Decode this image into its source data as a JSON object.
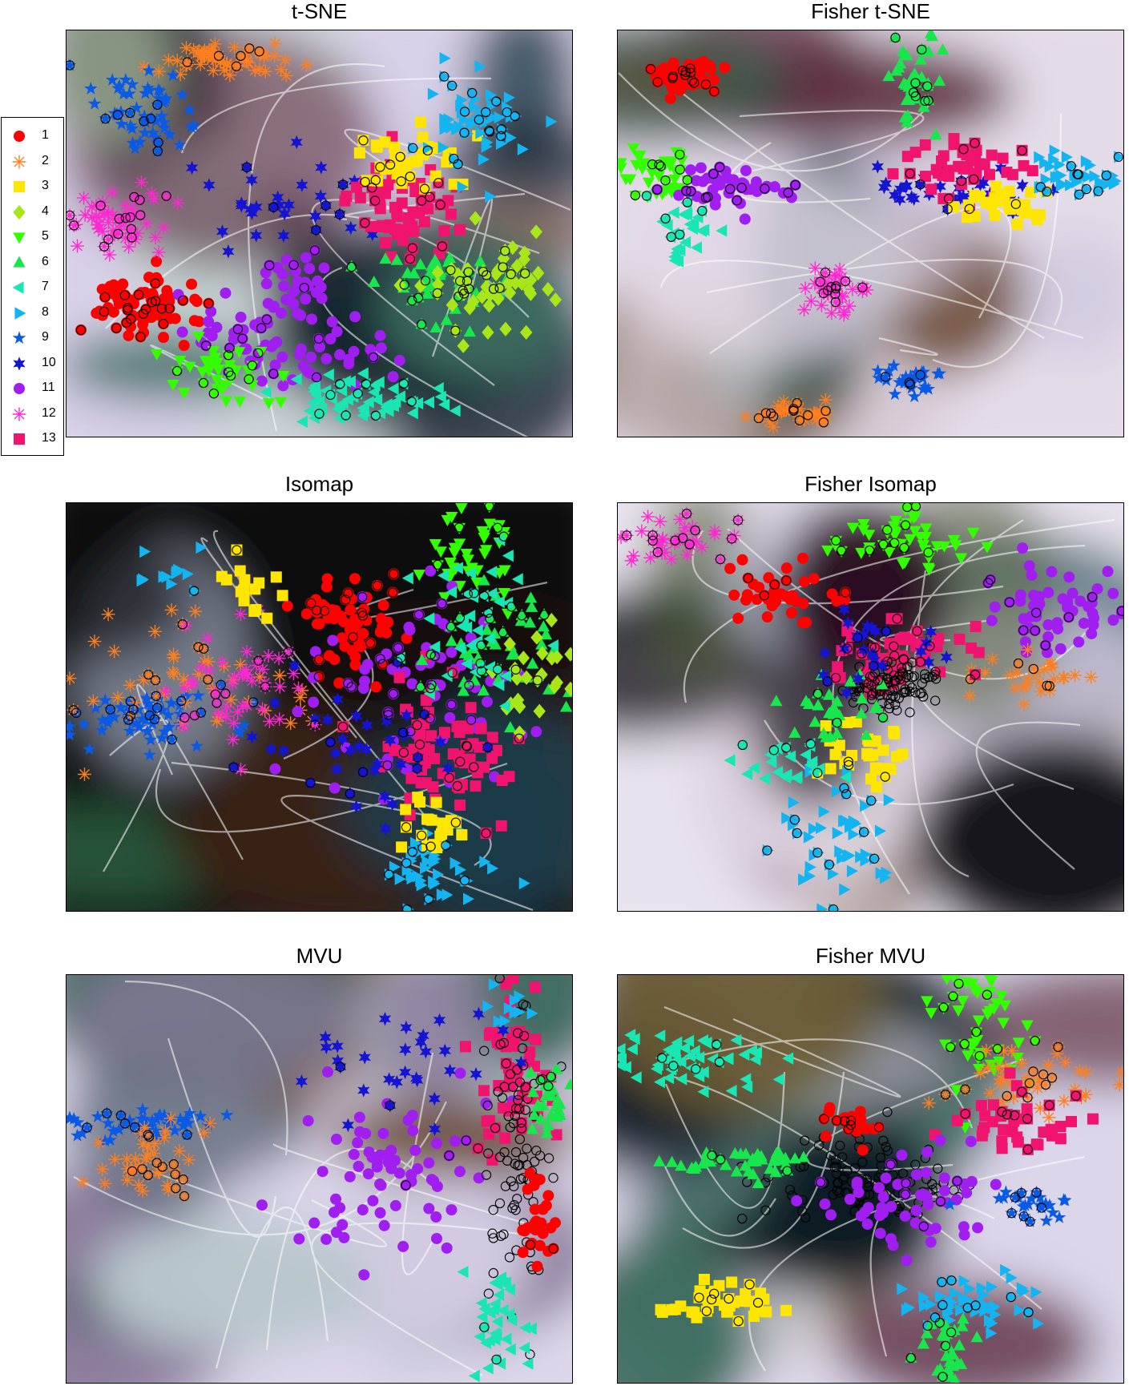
{
  "chart_data": [
    {
      "type": "scatter",
      "title": "t-SNE",
      "background": "decision-regions",
      "legend": "left",
      "clusters": [
        {
          "class": 1,
          "cx": 0.15,
          "cy": 0.67,
          "sx": 0.05,
          "sy": 0.04,
          "n": 90
        },
        {
          "class": 2,
          "cx": 0.32,
          "cy": 0.07,
          "sx": 0.07,
          "sy": 0.02,
          "n": 60
        },
        {
          "class": 12,
          "cx": 0.1,
          "cy": 0.47,
          "sx": 0.05,
          "sy": 0.04,
          "n": 60
        },
        {
          "class": 9,
          "cx": 0.15,
          "cy": 0.19,
          "sx": 0.05,
          "sy": 0.05,
          "n": 55
        },
        {
          "class": 10,
          "cx": 0.44,
          "cy": 0.42,
          "sx": 0.08,
          "sy": 0.05,
          "n": 30
        },
        {
          "class": 11,
          "cx": 0.42,
          "cy": 0.77,
          "sx": 0.1,
          "sy": 0.05,
          "n": 70
        },
        {
          "class": 11,
          "cx": 0.44,
          "cy": 0.62,
          "sx": 0.04,
          "sy": 0.05,
          "n": 30
        },
        {
          "class": 5,
          "cx": 0.3,
          "cy": 0.84,
          "sx": 0.05,
          "sy": 0.04,
          "n": 40
        },
        {
          "class": 7,
          "cx": 0.58,
          "cy": 0.9,
          "sx": 0.08,
          "sy": 0.03,
          "n": 60
        },
        {
          "class": 13,
          "cx": 0.67,
          "cy": 0.43,
          "sx": 0.06,
          "sy": 0.06,
          "n": 70
        },
        {
          "class": 3,
          "cx": 0.67,
          "cy": 0.33,
          "sx": 0.05,
          "sy": 0.04,
          "n": 40
        },
        {
          "class": 8,
          "cx": 0.81,
          "cy": 0.22,
          "sx": 0.05,
          "sy": 0.06,
          "n": 60
        },
        {
          "class": 6,
          "cx": 0.74,
          "cy": 0.63,
          "sx": 0.06,
          "sy": 0.05,
          "n": 45
        },
        {
          "class": 4,
          "cx": 0.84,
          "cy": 0.63,
          "sx": 0.06,
          "sy": 0.05,
          "n": 60
        }
      ]
    },
    {
      "type": "scatter",
      "title": "Fisher t-SNE",
      "background": "decision-regions",
      "clusters": [
        {
          "class": 1,
          "cx": 0.13,
          "cy": 0.11,
          "sx": 0.03,
          "sy": 0.02,
          "n": 60
        },
        {
          "class": 5,
          "cx": 0.08,
          "cy": 0.35,
          "sx": 0.04,
          "sy": 0.03,
          "n": 40
        },
        {
          "class": 11,
          "cx": 0.22,
          "cy": 0.38,
          "sx": 0.06,
          "sy": 0.03,
          "n": 50
        },
        {
          "class": 7,
          "cx": 0.13,
          "cy": 0.48,
          "sx": 0.03,
          "sy": 0.04,
          "n": 30
        },
        {
          "class": 6,
          "cx": 0.58,
          "cy": 0.13,
          "sx": 0.03,
          "sy": 0.06,
          "n": 40
        },
        {
          "class": 10,
          "cx": 0.66,
          "cy": 0.39,
          "sx": 0.08,
          "sy": 0.03,
          "n": 40
        },
        {
          "class": 13,
          "cx": 0.7,
          "cy": 0.33,
          "sx": 0.06,
          "sy": 0.04,
          "n": 45
        },
        {
          "class": 3,
          "cx": 0.76,
          "cy": 0.43,
          "sx": 0.04,
          "sy": 0.02,
          "n": 30
        },
        {
          "class": 8,
          "cx": 0.9,
          "cy": 0.36,
          "sx": 0.05,
          "sy": 0.03,
          "n": 40
        },
        {
          "class": 12,
          "cx": 0.43,
          "cy": 0.64,
          "sx": 0.03,
          "sy": 0.03,
          "n": 40
        },
        {
          "class": 9,
          "cx": 0.58,
          "cy": 0.86,
          "sx": 0.03,
          "sy": 0.02,
          "n": 30
        },
        {
          "class": 2,
          "cx": 0.36,
          "cy": 0.94,
          "sx": 0.04,
          "sy": 0.015,
          "n": 40
        }
      ]
    },
    {
      "type": "scatter",
      "title": "Isomap",
      "background": "decision-regions",
      "clusters": [
        {
          "class": 1,
          "cx": 0.55,
          "cy": 0.3,
          "sx": 0.05,
          "sy": 0.05,
          "n": 70
        },
        {
          "class": 9,
          "cx": 0.16,
          "cy": 0.52,
          "sx": 0.09,
          "sy": 0.04,
          "n": 60
        },
        {
          "class": 2,
          "cx": 0.25,
          "cy": 0.45,
          "sx": 0.1,
          "sy": 0.07,
          "n": 50
        },
        {
          "class": 12,
          "cx": 0.35,
          "cy": 0.45,
          "sx": 0.07,
          "sy": 0.08,
          "n": 50
        },
        {
          "class": 8,
          "cx": 0.22,
          "cy": 0.15,
          "sx": 0.05,
          "sy": 0.03,
          "n": 12
        },
        {
          "class": 3,
          "cx": 0.37,
          "cy": 0.2,
          "sx": 0.05,
          "sy": 0.04,
          "n": 15
        },
        {
          "class": 5,
          "cx": 0.81,
          "cy": 0.12,
          "sx": 0.04,
          "sy": 0.06,
          "n": 40
        },
        {
          "class": 11,
          "cx": 0.68,
          "cy": 0.45,
          "sx": 0.1,
          "sy": 0.12,
          "n": 80
        },
        {
          "class": 13,
          "cx": 0.74,
          "cy": 0.62,
          "sx": 0.07,
          "sy": 0.08,
          "n": 70
        },
        {
          "class": 10,
          "cx": 0.6,
          "cy": 0.6,
          "sx": 0.08,
          "sy": 0.1,
          "n": 40
        },
        {
          "class": 6,
          "cx": 0.85,
          "cy": 0.35,
          "sx": 0.07,
          "sy": 0.08,
          "n": 50
        },
        {
          "class": 4,
          "cx": 0.92,
          "cy": 0.45,
          "sx": 0.04,
          "sy": 0.06,
          "n": 25
        },
        {
          "class": 7,
          "cx": 0.8,
          "cy": 0.3,
          "sx": 0.06,
          "sy": 0.1,
          "n": 40
        },
        {
          "class": 8,
          "cx": 0.72,
          "cy": 0.9,
          "sx": 0.05,
          "sy": 0.05,
          "n": 45
        },
        {
          "class": 3,
          "cx": 0.72,
          "cy": 0.8,
          "sx": 0.04,
          "sy": 0.04,
          "n": 20
        }
      ]
    },
    {
      "type": "scatter",
      "title": "Fisher Isomap",
      "background": "decision-regions",
      "clusters": [
        {
          "class": 12,
          "cx": 0.12,
          "cy": 0.09,
          "sx": 0.06,
          "sy": 0.03,
          "n": 40
        },
        {
          "class": 1,
          "cx": 0.33,
          "cy": 0.22,
          "sx": 0.06,
          "sy": 0.04,
          "n": 40
        },
        {
          "class": 5,
          "cx": 0.57,
          "cy": 0.08,
          "sx": 0.07,
          "sy": 0.04,
          "n": 50
        },
        {
          "class": 11,
          "cx": 0.85,
          "cy": 0.25,
          "sx": 0.07,
          "sy": 0.05,
          "n": 60
        },
        {
          "class": 2,
          "cx": 0.82,
          "cy": 0.42,
          "sx": 0.07,
          "sy": 0.03,
          "n": 30
        },
        {
          "class": 13,
          "cx": 0.55,
          "cy": 0.38,
          "sx": 0.07,
          "sy": 0.06,
          "n": 50
        },
        {
          "class": 0,
          "cx": 0.55,
          "cy": 0.45,
          "sx": 0.04,
          "sy": 0.03,
          "n": 90
        },
        {
          "class": 3,
          "cx": 0.5,
          "cy": 0.62,
          "sx": 0.05,
          "sy": 0.04,
          "n": 30
        },
        {
          "class": 8,
          "cx": 0.43,
          "cy": 0.8,
          "sx": 0.05,
          "sy": 0.08,
          "n": 50
        },
        {
          "class": 7,
          "cx": 0.33,
          "cy": 0.65,
          "sx": 0.05,
          "sy": 0.04,
          "n": 25
        },
        {
          "class": 6,
          "cx": 0.45,
          "cy": 0.5,
          "sx": 0.06,
          "sy": 0.05,
          "n": 30
        },
        {
          "class": 10,
          "cx": 0.5,
          "cy": 0.35,
          "sx": 0.06,
          "sy": 0.05,
          "n": 25
        }
      ]
    },
    {
      "type": "scatter",
      "title": "MVU",
      "background": "decision-regions",
      "clusters": [
        {
          "class": 9,
          "cx": 0.15,
          "cy": 0.36,
          "sx": 0.08,
          "sy": 0.02,
          "n": 45
        },
        {
          "class": 2,
          "cx": 0.17,
          "cy": 0.45,
          "sx": 0.06,
          "sy": 0.04,
          "n": 45
        },
        {
          "class": 11,
          "cx": 0.65,
          "cy": 0.47,
          "sx": 0.1,
          "sy": 0.12,
          "n": 70
        },
        {
          "class": 13,
          "cx": 0.88,
          "cy": 0.25,
          "sx": 0.04,
          "sy": 0.1,
          "n": 60
        },
        {
          "class": 0,
          "cx": 0.89,
          "cy": 0.45,
          "sx": 0.03,
          "sy": 0.2,
          "n": 80
        },
        {
          "class": 1,
          "cx": 0.93,
          "cy": 0.6,
          "sx": 0.02,
          "sy": 0.05,
          "n": 30
        },
        {
          "class": 6,
          "cx": 0.95,
          "cy": 0.3,
          "sx": 0.02,
          "sy": 0.05,
          "n": 30
        },
        {
          "class": 7,
          "cx": 0.85,
          "cy": 0.85,
          "sx": 0.03,
          "sy": 0.07,
          "n": 35
        },
        {
          "class": 10,
          "cx": 0.68,
          "cy": 0.25,
          "sx": 0.1,
          "sy": 0.08,
          "n": 30
        },
        {
          "class": 8,
          "cx": 0.88,
          "cy": 0.08,
          "sx": 0.02,
          "sy": 0.03,
          "n": 10
        }
      ]
    },
    {
      "type": "scatter",
      "title": "Fisher MVU",
      "background": "decision-regions",
      "clusters": [
        {
          "class": 7,
          "cx": 0.15,
          "cy": 0.2,
          "sx": 0.08,
          "sy": 0.04,
          "n": 55
        },
        {
          "class": 5,
          "cx": 0.72,
          "cy": 0.12,
          "sx": 0.05,
          "sy": 0.07,
          "n": 50
        },
        {
          "class": 2,
          "cx": 0.8,
          "cy": 0.25,
          "sx": 0.09,
          "sy": 0.04,
          "n": 45
        },
        {
          "class": 13,
          "cx": 0.78,
          "cy": 0.36,
          "sx": 0.06,
          "sy": 0.04,
          "n": 40
        },
        {
          "class": 0,
          "cx": 0.5,
          "cy": 0.5,
          "sx": 0.1,
          "sy": 0.05,
          "n": 100
        },
        {
          "class": 11,
          "cx": 0.55,
          "cy": 0.55,
          "sx": 0.08,
          "sy": 0.06,
          "n": 60
        },
        {
          "class": 6,
          "cx": 0.25,
          "cy": 0.46,
          "sx": 0.07,
          "sy": 0.02,
          "n": 40
        },
        {
          "class": 3,
          "cx": 0.2,
          "cy": 0.8,
          "sx": 0.06,
          "sy": 0.02,
          "n": 40
        },
        {
          "class": 8,
          "cx": 0.7,
          "cy": 0.8,
          "sx": 0.08,
          "sy": 0.04,
          "n": 50
        },
        {
          "class": 6,
          "cx": 0.65,
          "cy": 0.9,
          "sx": 0.03,
          "sy": 0.05,
          "n": 30
        },
        {
          "class": 9,
          "cx": 0.82,
          "cy": 0.56,
          "sx": 0.05,
          "sy": 0.02,
          "n": 25
        },
        {
          "class": 1,
          "cx": 0.47,
          "cy": 0.37,
          "sx": 0.03,
          "sy": 0.02,
          "n": 25
        }
      ]
    }
  ],
  "legend": {
    "entries": [
      {
        "label": "1",
        "shape": "circle",
        "color": "#ff0000"
      },
      {
        "label": "2",
        "shape": "asterisk",
        "color": "#ff7f1e"
      },
      {
        "label": "3",
        "shape": "square",
        "color": "#ffe600"
      },
      {
        "label": "4",
        "shape": "diamond",
        "color": "#a8e61a"
      },
      {
        "label": "5",
        "shape": "triangle-down",
        "color": "#33ff00"
      },
      {
        "label": "6",
        "shape": "triangle-up",
        "color": "#19e64d"
      },
      {
        "label": "7",
        "shape": "triangle-left",
        "color": "#1ae6b3"
      },
      {
        "label": "8",
        "shape": "triangle-right",
        "color": "#14b4f0"
      },
      {
        "label": "9",
        "shape": "star5",
        "color": "#0a5ae6"
      },
      {
        "label": "10",
        "shape": "star6",
        "color": "#1414d2"
      },
      {
        "label": "11",
        "shape": "circle",
        "color": "#a01ef0"
      },
      {
        "label": "12",
        "shape": "asterisk",
        "color": "#ff28d2"
      },
      {
        "label": "13",
        "shape": "square",
        "color": "#f0146e"
      }
    ]
  }
}
